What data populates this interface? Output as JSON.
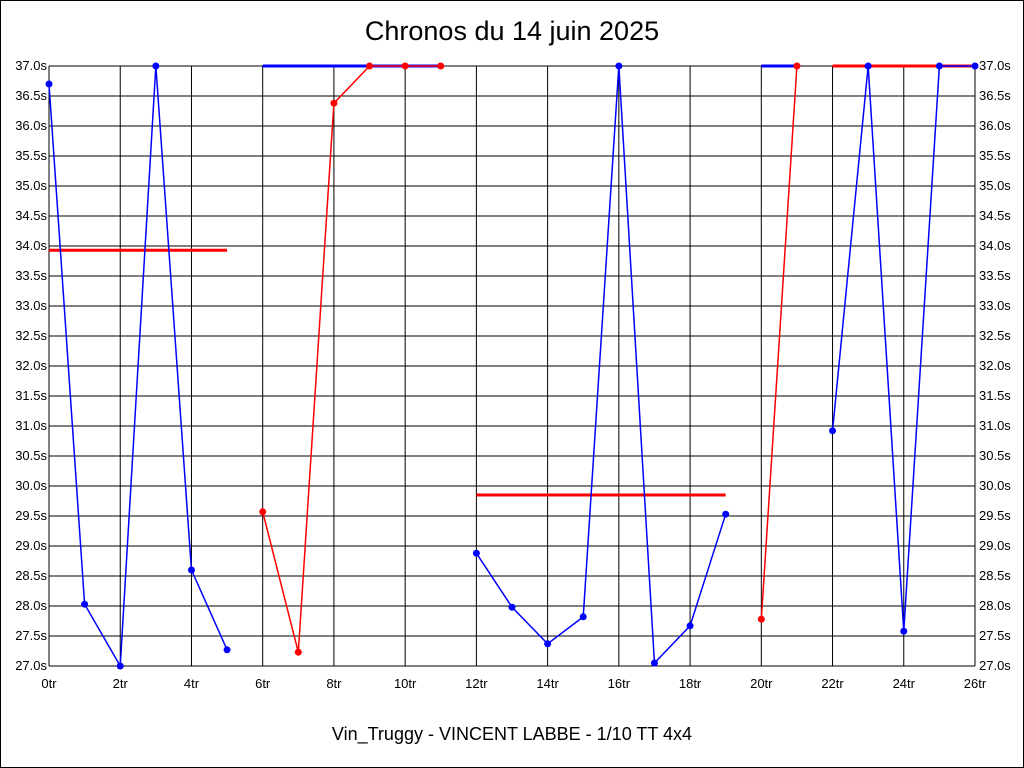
{
  "chart_data": {
    "type": "line",
    "title": "Chronos du 14 juin 2025",
    "footer": "Vin_Truggy - VINCENT LABBE - 1/10 TT 4x4",
    "x_tick_labels": [
      "0tr",
      "2tr",
      "4tr",
      "6tr",
      "8tr",
      "10tr",
      "12tr",
      "14tr",
      "16tr",
      "18tr",
      "20tr",
      "22tr",
      "24tr",
      "26tr"
    ],
    "y_tick_labels": [
      "27.0s",
      "27.5s",
      "28.0s",
      "28.5s",
      "29.0s",
      "29.5s",
      "30.0s",
      "30.5s",
      "31.0s",
      "31.5s",
      "32.0s",
      "32.5s",
      "33.0s",
      "33.5s",
      "34.0s",
      "34.5s",
      "35.0s",
      "35.5s",
      "36.0s",
      "36.5s",
      "37.0s"
    ],
    "xlim": [
      0,
      26
    ],
    "ylim": [
      27.0,
      37.0
    ],
    "grid": true,
    "colors": {
      "blue": "#0000ff",
      "red": "#ff0000"
    },
    "series": [
      {
        "color": "blue",
        "x": [
          0,
          1,
          2,
          3,
          4,
          5
        ],
        "y": [
          36.7,
          28.03,
          27.0,
          37.0,
          28.6,
          27.27
        ]
      },
      {
        "color": "red",
        "x": [
          6,
          7,
          8,
          9,
          10,
          11
        ],
        "y": [
          29.57,
          27.23,
          36.38,
          37.0,
          37.0,
          37.0
        ]
      },
      {
        "color": "blue",
        "x": [
          12,
          13,
          14,
          15,
          16,
          17,
          18,
          19
        ],
        "y": [
          28.88,
          27.98,
          27.37,
          27.82,
          37.0,
          27.05,
          27.67,
          29.53
        ]
      },
      {
        "color": "red",
        "x": [
          20,
          21
        ],
        "y": [
          27.78,
          37.0
        ]
      },
      {
        "color": "blue",
        "x": [
          22,
          23,
          24,
          25,
          26
        ],
        "y": [
          30.92,
          37.0,
          27.58,
          37.0,
          37.0
        ]
      }
    ],
    "horizontal_lines": [
      {
        "color": "red",
        "x": [
          0,
          5
        ],
        "y": 33.93
      },
      {
        "color": "blue",
        "x": [
          6,
          11
        ],
        "y": 37.0
      },
      {
        "color": "red",
        "x": [
          12,
          19
        ],
        "y": 29.85
      },
      {
        "color": "blue",
        "x": [
          20,
          21
        ],
        "y": 37.0
      },
      {
        "color": "red",
        "x": [
          22,
          26
        ],
        "y": 37.0
      }
    ]
  }
}
